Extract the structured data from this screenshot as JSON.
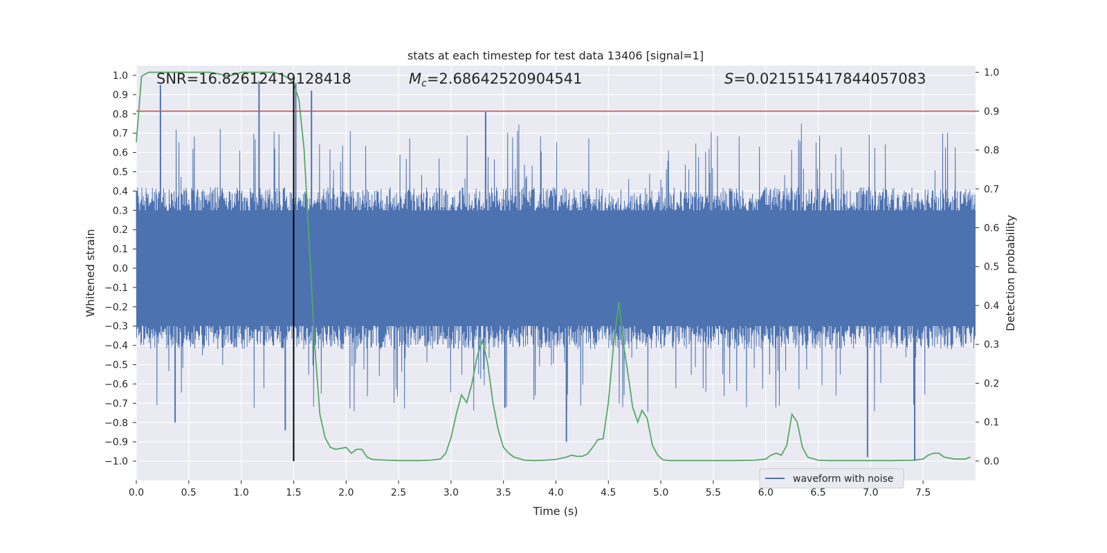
{
  "chart_data": {
    "type": "line",
    "title": "stats at each timestep for test data 13406 [signal=1]",
    "xlabel": "Time (s)",
    "ylabel_left": "Whitened strain",
    "ylabel_right": "Detection probability",
    "xlim": [
      0.0,
      8.0
    ],
    "ylim_left": [
      -1.1,
      1.05
    ],
    "ylim_right": [
      -0.05,
      1.017
    ],
    "x_ticks": [
      0.0,
      0.5,
      1.0,
      1.5,
      2.0,
      2.5,
      3.0,
      3.5,
      4.0,
      4.5,
      5.0,
      5.5,
      6.0,
      6.5,
      7.0,
      7.5
    ],
    "x_tick_labels": [
      "0.0",
      "0.5",
      "1.0",
      "1.5",
      "2.0",
      "2.5",
      "3.0",
      "3.5",
      "4.0",
      "4.5",
      "5.0",
      "5.5",
      "6.0",
      "6.5",
      "7.0",
      "7.5"
    ],
    "y_left_ticks": [
      1.0,
      0.9,
      0.8,
      0.7,
      0.6,
      0.5,
      0.4,
      0.3,
      0.2,
      0.1,
      0.0,
      -0.1,
      -0.2,
      -0.3,
      -0.4,
      -0.5,
      -0.6,
      -0.7,
      -0.8,
      -0.9,
      -1.0
    ],
    "y_left_tick_labels": [
      "1.0",
      "0.9",
      "0.8",
      "0.7",
      "0.6",
      "0.5",
      "0.4",
      "0.3",
      "0.2",
      "0.1",
      "0.0",
      "−0.1",
      "−0.2",
      "−0.3",
      "−0.4",
      "−0.5",
      "−0.6",
      "−0.7",
      "−0.8",
      "−0.9",
      "−1.0"
    ],
    "y_right_ticks": [
      1.0,
      0.9,
      0.8,
      0.7,
      0.6,
      0.5,
      0.4,
      0.3,
      0.2,
      0.1,
      0.0
    ],
    "y_right_tick_labels": [
      "1.0",
      "0.9",
      "0.8",
      "0.7",
      "0.6",
      "0.5",
      "0.4",
      "0.3",
      "0.2",
      "0.1",
      "0.0"
    ],
    "annotations": {
      "snr": "SNR=16.82612419128418",
      "mc_prefix": "M",
      "mc_sub": "c",
      "mc_value": "=2.68642520904541",
      "s_prefix": "S",
      "s_value": "=0.021515417844057083"
    },
    "threshold_right": 0.9,
    "marker_time": 1.5,
    "marker_range_left": [
      -1.0,
      1.0
    ],
    "series": [
      {
        "name": "waveform with noise",
        "axis": "left",
        "color": "#4c72b0",
        "style": "dense noise, band approx ±0.3 to ±0.45 with peaks to ±1.0",
        "notable_peaks": [
          {
            "x": 0.23,
            "y": 0.95
          },
          {
            "x": 1.17,
            "y": 0.97
          },
          {
            "x": 1.52,
            "y": 0.96
          },
          {
            "x": 1.67,
            "y": 0.92
          },
          {
            "x": 3.33,
            "y": 0.81
          },
          {
            "x": 0.37,
            "y": -0.8
          },
          {
            "x": 1.42,
            "y": -0.84
          },
          {
            "x": 4.1,
            "y": -0.9
          },
          {
            "x": 6.97,
            "y": -0.98
          },
          {
            "x": 7.42,
            "y": -1.0
          }
        ]
      },
      {
        "name": "detection probability",
        "axis": "right",
        "color": "#55a868",
        "x": [
          0.0,
          0.05,
          0.12,
          0.2,
          0.3,
          0.4,
          0.5,
          0.6,
          0.7,
          0.8,
          0.87,
          0.95,
          1.0,
          1.1,
          1.2,
          1.3,
          1.38,
          1.45,
          1.5,
          1.55,
          1.6,
          1.65,
          1.7,
          1.75,
          1.8,
          1.85,
          1.9,
          2.0,
          2.05,
          2.1,
          2.15,
          2.2,
          2.25,
          2.3,
          2.4,
          2.5,
          2.6,
          2.7,
          2.8,
          2.9,
          2.95,
          3.0,
          3.05,
          3.1,
          3.15,
          3.2,
          3.25,
          3.3,
          3.35,
          3.4,
          3.45,
          3.5,
          3.55,
          3.6,
          3.7,
          3.8,
          3.9,
          4.0,
          4.1,
          4.15,
          4.2,
          4.25,
          4.3,
          4.35,
          4.4,
          4.45,
          4.5,
          4.55,
          4.6,
          4.65,
          4.7,
          4.73,
          4.78,
          4.82,
          4.87,
          4.92,
          4.97,
          5.02,
          5.08,
          5.15,
          5.3,
          5.5,
          5.7,
          5.9,
          6.0,
          6.05,
          6.1,
          6.15,
          6.2,
          6.25,
          6.3,
          6.35,
          6.4,
          6.5,
          6.6,
          6.7,
          6.8,
          6.9,
          7.0,
          7.2,
          7.4,
          7.5,
          7.55,
          7.6,
          7.65,
          7.7,
          7.8,
          7.9,
          7.95
        ],
        "y": [
          0.82,
          0.99,
          1.0,
          1.0,
          1.0,
          1.0,
          1.0,
          1.0,
          1.0,
          0.995,
          0.99,
          0.995,
          1.0,
          1.0,
          1.0,
          1.0,
          0.995,
          0.985,
          0.97,
          0.93,
          0.8,
          0.55,
          0.3,
          0.12,
          0.06,
          0.035,
          0.03,
          0.035,
          0.02,
          0.03,
          0.03,
          0.01,
          0.004,
          0.003,
          0.002,
          0.001,
          0.001,
          0.001,
          0.002,
          0.005,
          0.02,
          0.06,
          0.12,
          0.17,
          0.15,
          0.2,
          0.27,
          0.31,
          0.25,
          0.15,
          0.08,
          0.035,
          0.02,
          0.01,
          0.002,
          0.001,
          0.002,
          0.004,
          0.01,
          0.015,
          0.012,
          0.012,
          0.018,
          0.035,
          0.055,
          0.057,
          0.15,
          0.3,
          0.41,
          0.29,
          0.2,
          0.14,
          0.1,
          0.13,
          0.11,
          0.04,
          0.015,
          0.003,
          0.001,
          0.001,
          0.001,
          0.001,
          0.001,
          0.002,
          0.005,
          0.015,
          0.02,
          0.015,
          0.04,
          0.12,
          0.1,
          0.035,
          0.01,
          0.002,
          0.001,
          0.001,
          0.001,
          0.001,
          0.001,
          0.001,
          0.002,
          0.005,
          0.015,
          0.02,
          0.02,
          0.01,
          0.005,
          0.005,
          0.01
        ]
      }
    ],
    "threshold_color": "#c44e52",
    "marker_color": "#000000",
    "background_color": "#eaeaf2",
    "legend": {
      "label": "waveform with noise",
      "placement": "lower-right"
    }
  }
}
